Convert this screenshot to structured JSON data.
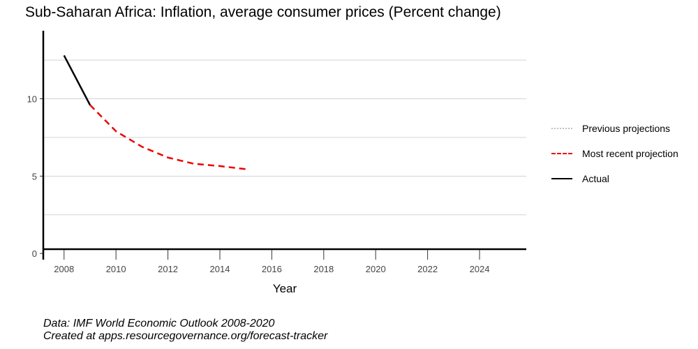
{
  "chart_data": {
    "type": "line",
    "title": "Sub-Saharan Africa: Inflation, average consumer prices (Percent change)",
    "xlabel": "Year",
    "ylabel": "",
    "xlim": [
      2007.2,
      2025.8
    ],
    "ylim": [
      -0.4,
      14.4
    ],
    "xticks": [
      2008,
      2010,
      2012,
      2014,
      2016,
      2018,
      2020,
      2022,
      2024
    ],
    "yticks": [
      0,
      5,
      10
    ],
    "ygrid": [
      2.5,
      5,
      7.5,
      10,
      12.5
    ],
    "legend_position": "right",
    "series": [
      {
        "name": "Previous projections",
        "style": "dotted",
        "color": "#c0c0c0",
        "x": [],
        "y": []
      },
      {
        "name": "Most recent projection",
        "style": "dashed",
        "color": "#ee0000",
        "x": [
          2009,
          2010,
          2011,
          2012,
          2013,
          2014,
          2015
        ],
        "y": [
          9.6,
          7.9,
          6.9,
          6.2,
          5.8,
          5.65,
          5.45
        ]
      },
      {
        "name": "Actual",
        "style": "solid",
        "color": "#000000",
        "x": [
          2008,
          2009
        ],
        "y": [
          12.8,
          9.6
        ]
      }
    ]
  },
  "caption": {
    "line1": "Data: IMF World Economic Outlook 2008-2020",
    "line2": "Created at apps.resourcegovernance.org/forecast-tracker"
  }
}
